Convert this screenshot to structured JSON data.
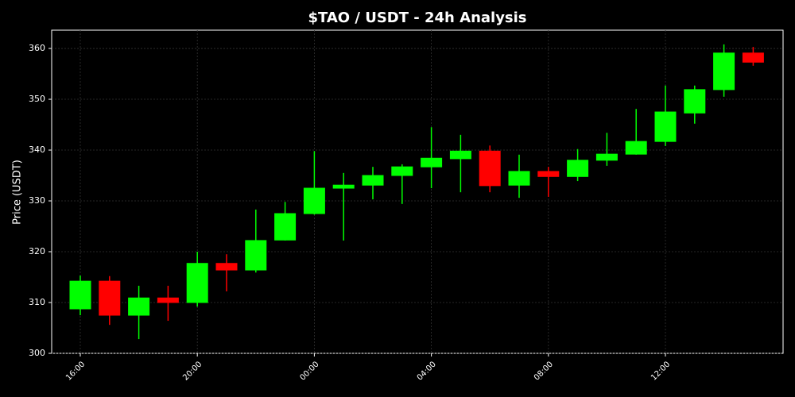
{
  "chart_data": {
    "type": "candlestick",
    "title": "$TAO / USDT - 24h Analysis",
    "y_label": "Price (USDT)",
    "categories": [
      "16:00",
      null,
      null,
      null,
      "20:00",
      null,
      null,
      null,
      "00:00",
      null,
      null,
      null,
      "04:00",
      null,
      null,
      null,
      "08:00",
      null,
      null,
      null,
      "12:00",
      null,
      null,
      null
    ],
    "open": [
      308.75,
      314.2,
      307.5,
      310.9,
      310.0,
      317.7,
      316.4,
      322.3,
      327.5,
      332.5,
      333.1,
      335.0,
      336.7,
      338.3,
      339.8,
      333.1,
      335.8,
      334.8,
      338.0,
      339.2,
      341.7,
      347.3,
      351.9,
      359.1
    ],
    "high": [
      315.3,
      315.2,
      313.3,
      313.3,
      320.0,
      319.5,
      328.3,
      329.8,
      339.8,
      335.5,
      336.7,
      337.2,
      344.5,
      343.0,
      340.9,
      339.1,
      336.7,
      340.2,
      343.4,
      348.1,
      352.7,
      352.7,
      360.8,
      360.3
    ],
    "low": [
      307.5,
      305.6,
      302.8,
      306.4,
      309.2,
      312.2,
      315.9,
      322.2,
      327.3,
      322.2,
      330.3,
      329.4,
      332.5,
      331.7,
      331.7,
      330.6,
      330.8,
      333.9,
      336.9,
      339.1,
      340.8,
      345.2,
      350.5,
      356.6
    ],
    "close": [
      314.2,
      307.5,
      310.9,
      310.0,
      317.7,
      316.4,
      322.2,
      327.5,
      332.5,
      333.1,
      335.0,
      336.7,
      338.4,
      339.8,
      333.0,
      335.8,
      334.8,
      338.0,
      339.2,
      341.7,
      347.5,
      351.9,
      359.1,
      357.3
    ],
    "up_color": "#00ff00",
    "down_color": "#ff0000",
    "ylim": [
      300,
      363.6
    ],
    "yticks": [
      300,
      310,
      320,
      330,
      340,
      350,
      360
    ],
    "grid": true
  }
}
